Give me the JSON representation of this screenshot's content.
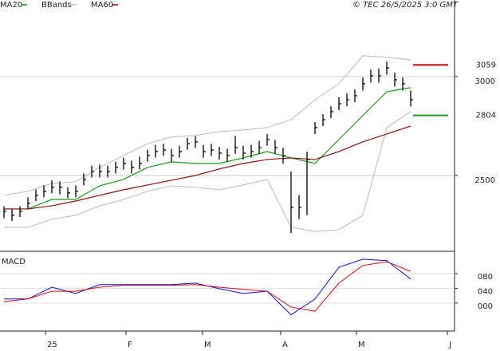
{
  "chart_data": {
    "type": "ohlc",
    "copyright": "© TEC 26/5/2025 3:0 GMT",
    "xlim": [
      -0.5,
      56.5
    ],
    "xticks": [
      {
        "value": 5.2,
        "label": "25"
      },
      {
        "value": 15.3,
        "label": "F"
      },
      {
        "value": 24.9,
        "label": "M"
      },
      {
        "value": 34.7,
        "label": "A"
      },
      {
        "value": 44.2,
        "label": "M"
      },
      {
        "value": 55.6,
        "label": "J"
      }
    ],
    "price": {
      "ylim": [
        2117,
        3387
      ],
      "yticks": [
        3000,
        2500
      ],
      "grid": true,
      "bar_color": "#111111",
      "high": [
        2345,
        2330,
        2345,
        2390,
        2430,
        2450,
        2475,
        2470,
        2440,
        2450,
        2510,
        2550,
        2555,
        2550,
        2570,
        2590,
        2575,
        2595,
        2630,
        2655,
        2660,
        2635,
        2650,
        2690,
        2700,
        2655,
        2660,
        2645,
        2635,
        2700,
        2650,
        2655,
        2675,
        2710,
        2680,
        2640,
        2520,
        2400,
        2620,
        2770,
        2810,
        2850,
        2895,
        2915,
        2935,
        2995,
        3035,
        3040,
        3075,
        3020,
        2995,
        2930
      ],
      "low": [
        2285,
        2270,
        2290,
        2330,
        2370,
        2390,
        2410,
        2405,
        2385,
        2390,
        2450,
        2490,
        2490,
        2490,
        2510,
        2530,
        2510,
        2530,
        2570,
        2590,
        2600,
        2570,
        2590,
        2630,
        2640,
        2590,
        2600,
        2580,
        2570,
        2610,
        2580,
        2590,
        2610,
        2650,
        2610,
        2560,
        2210,
        2280,
        2300,
        2710,
        2750,
        2790,
        2830,
        2850,
        2870,
        2930,
        2970,
        2970,
        3010,
        2950,
        2930,
        2850
      ],
      "close": [
        2319,
        2299,
        2319,
        2359,
        2400,
        2420,
        2440,
        2440,
        2412,
        2420,
        2480,
        2520,
        2520,
        2520,
        2541,
        2561,
        2541,
        2561,
        2601,
        2621,
        2629,
        2601,
        2621,
        2661,
        2670,
        2621,
        2629,
        2613,
        2601,
        2641,
        2613,
        2621,
        2641,
        2682,
        2641,
        2601,
        2339,
        2339,
        2581,
        2742,
        2782,
        2823,
        2863,
        2883,
        2903,
        2964,
        3004,
        3004,
        3044,
        2984,
        2964,
        2883
      ],
      "series": [
        {
          "name": "MA20",
          "color": "#1a9a1a",
          "x": [
            0,
            3,
            6,
            9,
            12,
            15,
            18,
            21,
            24,
            27,
            30,
            33,
            36,
            39,
            42,
            45,
            48,
            51
          ],
          "values": [
            2331,
            2331,
            2379,
            2379,
            2448,
            2480,
            2541,
            2569,
            2561,
            2561,
            2589,
            2621,
            2589,
            2561,
            2682,
            2803,
            2923,
            2944
          ]
        },
        {
          "name": "MA60",
          "color": "#8b1010",
          "x": [
            0,
            3,
            6,
            9,
            12,
            15,
            18,
            21,
            24,
            27,
            30,
            33,
            36,
            39,
            42,
            45,
            48,
            51
          ],
          "values": [
            2331,
            2331,
            2347,
            2371,
            2400,
            2428,
            2452,
            2476,
            2500,
            2533,
            2561,
            2581,
            2589,
            2581,
            2621,
            2670,
            2710,
            2750
          ]
        }
      ],
      "bands": {
        "name": "BBands",
        "color": "#bbbbbb",
        "x": [
          0,
          3,
          6,
          9,
          12,
          15,
          18,
          21,
          24,
          27,
          30,
          33,
          36,
          39,
          42,
          45,
          48,
          51
        ],
        "upper": [
          2400,
          2420,
          2460,
          2468,
          2541,
          2601,
          2661,
          2694,
          2702,
          2722,
          2730,
          2742,
          2782,
          2883,
          2964,
          3105,
          3097,
          3085
        ],
        "lower": [
          2238,
          2238,
          2279,
          2299,
          2347,
          2379,
          2420,
          2448,
          2440,
          2428,
          2452,
          2480,
          2238,
          2218,
          2226,
          2299,
          2742,
          2823
        ]
      },
      "markers": [
        {
          "value": 3059,
          "color": "#cc0000"
        },
        {
          "value": 2804,
          "color": "#1a9a1a"
        }
      ]
    },
    "macd": {
      "title": "MACD",
      "ylim": [
        -76,
        136
      ],
      "yticks": [
        {
          "value": 80,
          "label": "080"
        },
        {
          "value": 40,
          "label": "040"
        },
        {
          "value": 0,
          "label": "000"
        }
      ],
      "series": [
        {
          "color": "#1010cc",
          "x": [
            0,
            3,
            6,
            9,
            12,
            15,
            18,
            21,
            24,
            27,
            30,
            33,
            36,
            39,
            42,
            45,
            48,
            51
          ],
          "values": [
            11,
            11,
            43,
            26,
            50,
            50,
            50,
            50,
            54,
            39,
            26,
            32,
            -32,
            11,
            97,
            119,
            115,
            65
          ]
        },
        {
          "color": "#cc1010",
          "x": [
            0,
            3,
            6,
            9,
            12,
            15,
            18,
            21,
            24,
            27,
            30,
            33,
            36,
            39,
            42,
            45,
            48,
            51
          ],
          "values": [
            4,
            11,
            32,
            32,
            43,
            48,
            48,
            48,
            50,
            43,
            37,
            32,
            -11,
            -22,
            54,
            102,
            112,
            86
          ]
        }
      ]
    }
  }
}
